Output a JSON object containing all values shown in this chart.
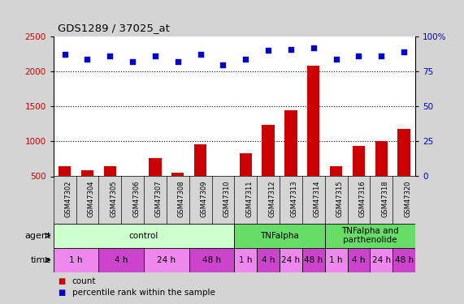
{
  "title": "GDS1289 / 37025_at",
  "samples": [
    "GSM47302",
    "GSM47304",
    "GSM47305",
    "GSM47306",
    "GSM47307",
    "GSM47308",
    "GSM47309",
    "GSM47310",
    "GSM47311",
    "GSM47312",
    "GSM47313",
    "GSM47314",
    "GSM47315",
    "GSM47316",
    "GSM47318",
    "GSM47320"
  ],
  "counts": [
    650,
    590,
    650,
    510,
    760,
    550,
    960,
    480,
    830,
    1240,
    1440,
    2080,
    650,
    930,
    1010,
    1180
  ],
  "percentile_ranks": [
    87,
    84,
    86,
    82,
    86,
    82,
    87,
    80,
    84,
    90,
    91,
    92,
    84,
    86,
    86,
    89
  ],
  "bar_color": "#cc0000",
  "dot_color": "#0000cc",
  "ylim_left": [
    500,
    2500
  ],
  "ylim_right": [
    0,
    100
  ],
  "yticks_left": [
    500,
    1000,
    1500,
    2000,
    2500
  ],
  "yticks_right": [
    0,
    25,
    50,
    75,
    100
  ],
  "left_tick_color": "#cc0000",
  "right_tick_color": "#0000cc",
  "grid_color": "#000000",
  "agent_groups": [
    {
      "label": "control",
      "start": 0,
      "end": 8,
      "color": "#ccffcc"
    },
    {
      "label": "TNFalpha",
      "start": 8,
      "end": 12,
      "color": "#66dd66"
    },
    {
      "label": "TNFalpha and\nparthenolide",
      "start": 12,
      "end": 16,
      "color": "#66dd66"
    }
  ],
  "time_groups": [
    {
      "label": "1 h",
      "start": 0,
      "end": 2,
      "color": "#ee88ee"
    },
    {
      "label": "4 h",
      "start": 2,
      "end": 4,
      "color": "#cc44cc"
    },
    {
      "label": "24 h",
      "start": 4,
      "end": 6,
      "color": "#ee88ee"
    },
    {
      "label": "48 h",
      "start": 6,
      "end": 8,
      "color": "#cc44cc"
    },
    {
      "label": "1 h",
      "start": 8,
      "end": 9,
      "color": "#ee88ee"
    },
    {
      "label": "4 h",
      "start": 9,
      "end": 10,
      "color": "#cc44cc"
    },
    {
      "label": "24 h",
      "start": 10,
      "end": 11,
      "color": "#ee88ee"
    },
    {
      "label": "48 h",
      "start": 11,
      "end": 12,
      "color": "#cc44cc"
    },
    {
      "label": "1 h",
      "start": 12,
      "end": 13,
      "color": "#ee88ee"
    },
    {
      "label": "4 h",
      "start": 13,
      "end": 14,
      "color": "#cc44cc"
    },
    {
      "label": "24 h",
      "start": 14,
      "end": 15,
      "color": "#ee88ee"
    },
    {
      "label": "48 h",
      "start": 15,
      "end": 16,
      "color": "#cc44cc"
    }
  ],
  "sample_bg": "#c8c8c8",
  "fig_bg": "#d4d4d4",
  "plot_bg": "#ffffff",
  "legend_count_color": "#cc0000",
  "legend_dot_color": "#0000cc"
}
